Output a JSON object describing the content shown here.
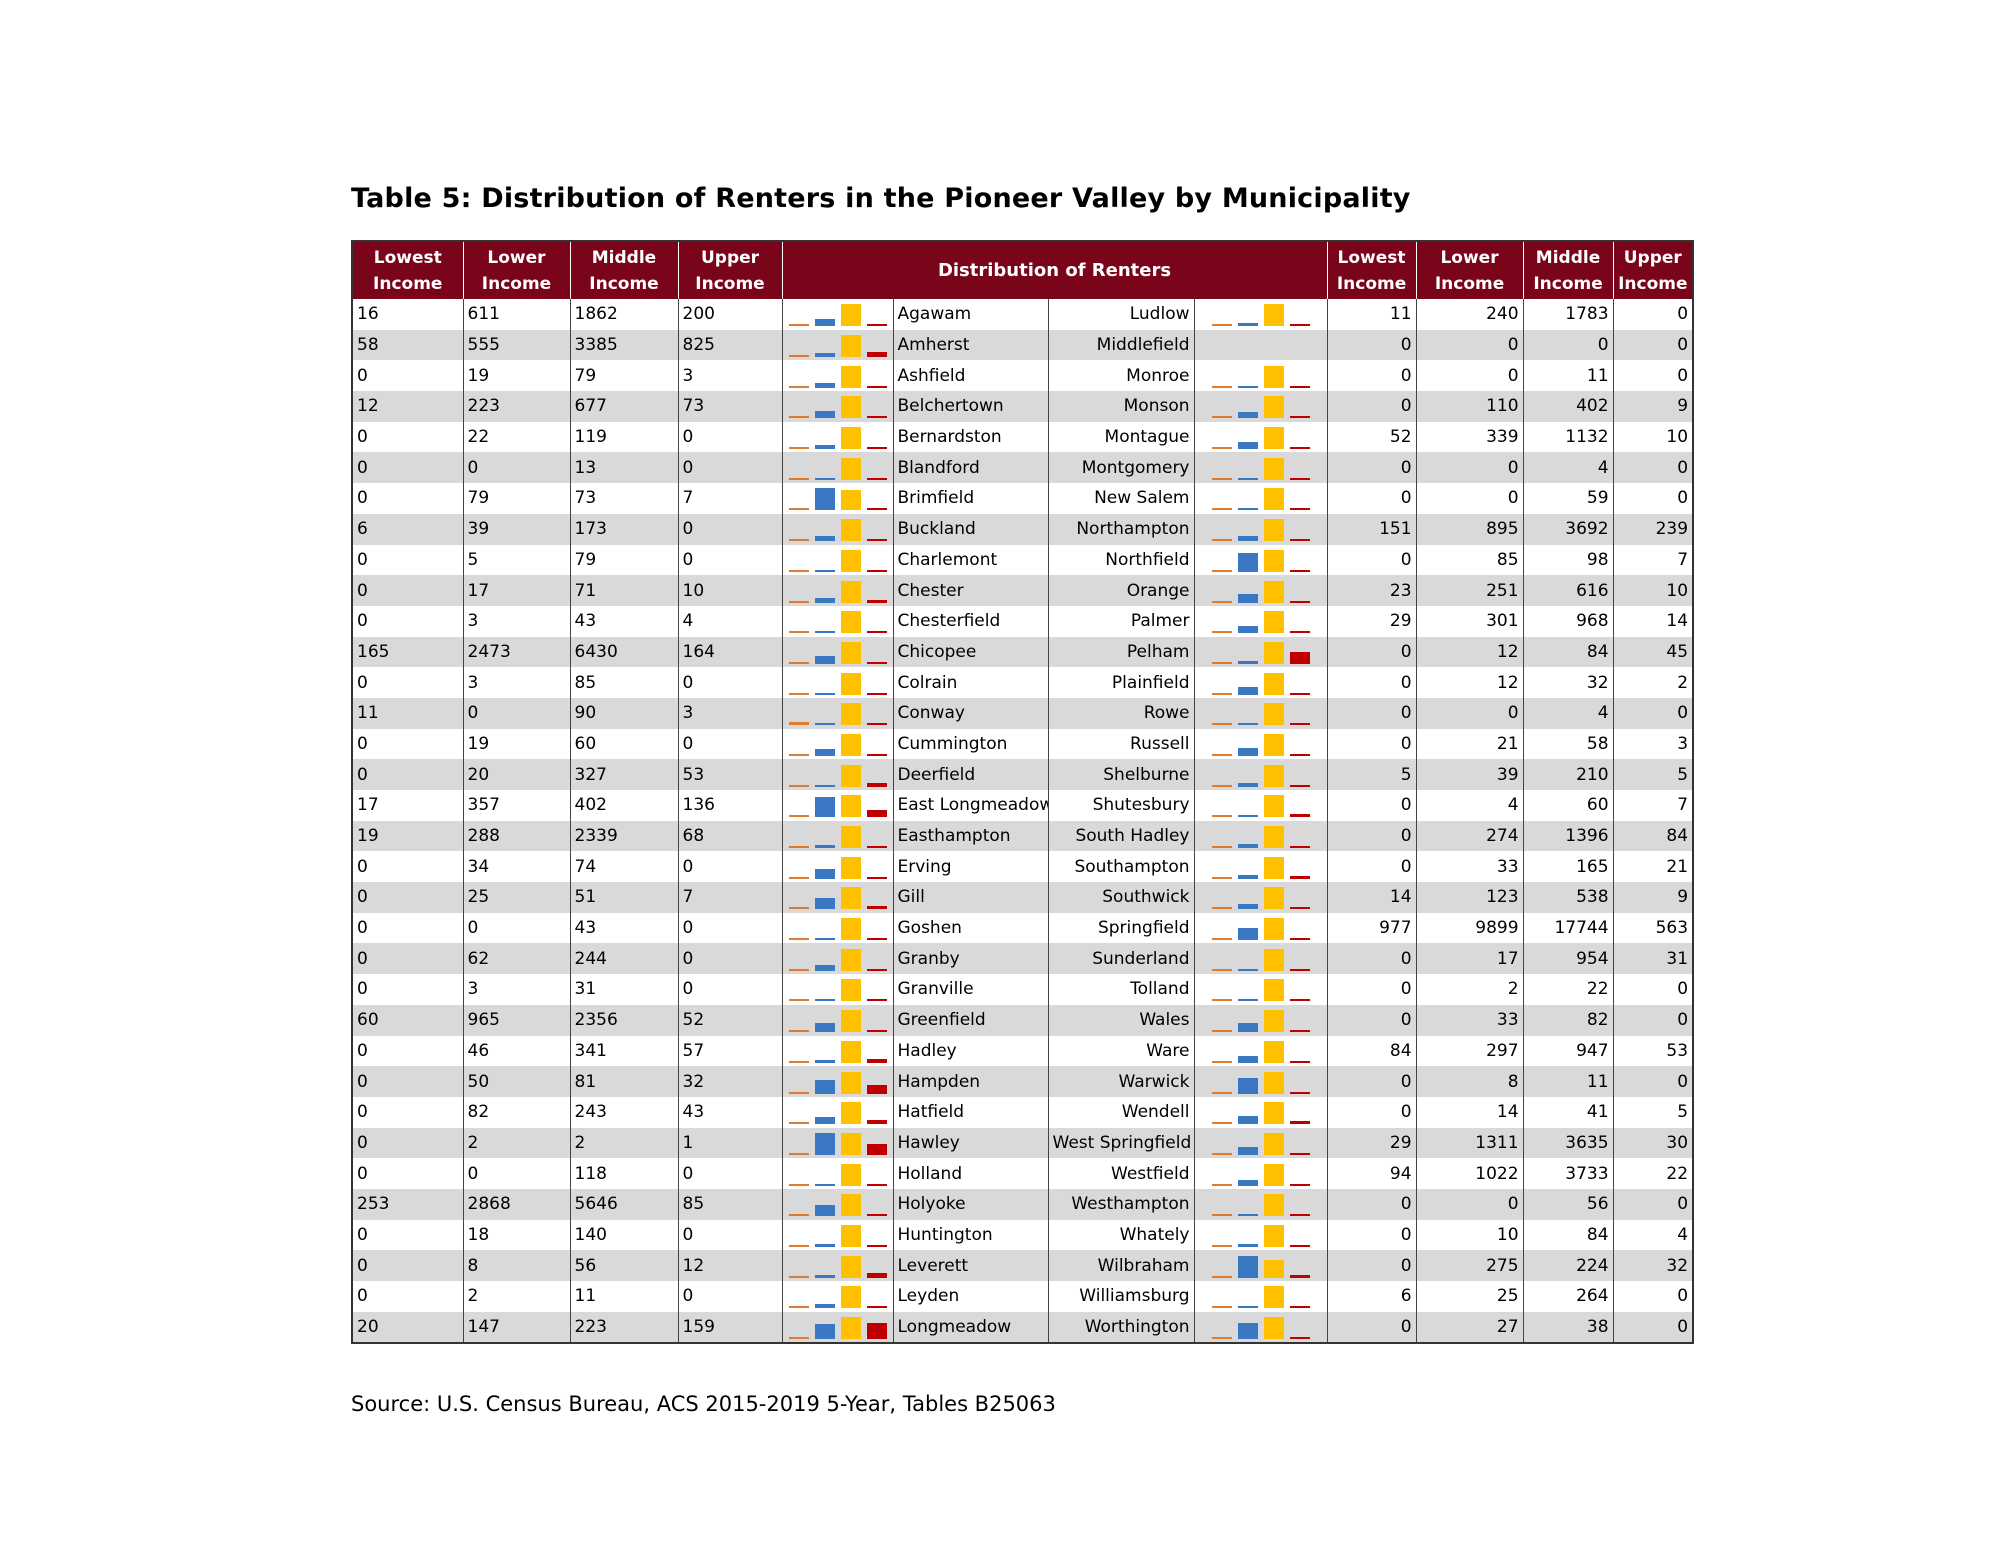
{
  "title": "Table 5: Distribution of Renters in the Pioneer Valley by Municipality",
  "source": "Source: U.S. Census Bureau, ACS 2015-2019 5-Year, Tables B25063",
  "header": {
    "left": [
      "Lowest Income",
      "Lower Income",
      "Middle Income",
      "Upper Income"
    ],
    "center": "Distribution of Renters",
    "right": [
      "Lowest Income",
      "Lower Income",
      "Middle Income",
      "Upper Income"
    ]
  },
  "colors": {
    "header": "#7a0419",
    "lowest": "#e07a2c",
    "lower": "#3b78c4",
    "middle": "#ffc000",
    "upper": "#c00000"
  },
  "rows": [
    {
      "lt": "Agawam",
      "lv": [
        16,
        611,
        1862,
        200
      ],
      "rt": "Ludlow",
      "rv": [
        11,
        240,
        1783,
        0
      ]
    },
    {
      "lt": "Amherst",
      "lv": [
        58,
        555,
        3385,
        825
      ],
      "rt": "Middlefield",
      "rv": [
        0,
        0,
        0,
        0
      ]
    },
    {
      "lt": "Ashfield",
      "lv": [
        0,
        19,
        79,
        3
      ],
      "rt": "Monroe",
      "rv": [
        0,
        0,
        11,
        0
      ]
    },
    {
      "lt": "Belchertown",
      "lv": [
        12,
        223,
        677,
        73
      ],
      "rt": "Monson",
      "rv": [
        0,
        110,
        402,
        9
      ]
    },
    {
      "lt": "Bernardston",
      "lv": [
        0,
        22,
        119,
        0
      ],
      "rt": "Montague",
      "rv": [
        52,
        339,
        1132,
        10
      ]
    },
    {
      "lt": "Blandford",
      "lv": [
        0,
        0,
        13,
        0
      ],
      "rt": "Montgomery",
      "rv": [
        0,
        0,
        4,
        0
      ]
    },
    {
      "lt": "Brimfield",
      "lv": [
        0,
        79,
        73,
        7
      ],
      "rt": "New Salem",
      "rv": [
        0,
        0,
        59,
        0
      ]
    },
    {
      "lt": "Buckland",
      "lv": [
        6,
        39,
        173,
        0
      ],
      "rt": "Northampton",
      "rv": [
        151,
        895,
        3692,
        239
      ]
    },
    {
      "lt": "Charlemont",
      "lv": [
        0,
        5,
        79,
        0
      ],
      "rt": "Northfield",
      "rv": [
        0,
        85,
        98,
        7
      ]
    },
    {
      "lt": "Chester",
      "lv": [
        0,
        17,
        71,
        10
      ],
      "rt": "Orange",
      "rv": [
        23,
        251,
        616,
        10
      ]
    },
    {
      "lt": "Chesterfield",
      "lv": [
        0,
        3,
        43,
        4
      ],
      "rt": "Palmer",
      "rv": [
        29,
        301,
        968,
        14
      ]
    },
    {
      "lt": "Chicopee",
      "lv": [
        165,
        2473,
        6430,
        164
      ],
      "rt": "Pelham",
      "rv": [
        0,
        12,
        84,
        45
      ]
    },
    {
      "lt": "Colrain",
      "lv": [
        0,
        3,
        85,
        0
      ],
      "rt": "Plainfield",
      "rv": [
        0,
        12,
        32,
        2
      ]
    },
    {
      "lt": "Conway",
      "lv": [
        11,
        0,
        90,
        3
      ],
      "rt": "Rowe",
      "rv": [
        0,
        0,
        4,
        0
      ]
    },
    {
      "lt": "Cummington",
      "lv": [
        0,
        19,
        60,
        0
      ],
      "rt": "Russell",
      "rv": [
        0,
        21,
        58,
        3
      ]
    },
    {
      "lt": "Deerfield",
      "lv": [
        0,
        20,
        327,
        53
      ],
      "rt": "Shelburne",
      "rv": [
        5,
        39,
        210,
        5
      ]
    },
    {
      "lt": "East Longmeadow",
      "lv": [
        17,
        357,
        402,
        136
      ],
      "rt": "Shutesbury",
      "rv": [
        0,
        4,
        60,
        7
      ]
    },
    {
      "lt": "Easthampton",
      "lv": [
        19,
        288,
        2339,
        68
      ],
      "rt": "South Hadley",
      "rv": [
        0,
        274,
        1396,
        84
      ]
    },
    {
      "lt": "Erving",
      "lv": [
        0,
        34,
        74,
        0
      ],
      "rt": "Southampton",
      "rv": [
        0,
        33,
        165,
        21
      ]
    },
    {
      "lt": "Gill",
      "lv": [
        0,
        25,
        51,
        7
      ],
      "rt": "Southwick",
      "rv": [
        14,
        123,
        538,
        9
      ]
    },
    {
      "lt": "Goshen",
      "lv": [
        0,
        0,
        43,
        0
      ],
      "rt": "Springfield",
      "rv": [
        977,
        9899,
        17744,
        563
      ]
    },
    {
      "lt": "Granby",
      "lv": [
        0,
        62,
        244,
        0
      ],
      "rt": "Sunderland",
      "rv": [
        0,
        17,
        954,
        31
      ]
    },
    {
      "lt": "Granville",
      "lv": [
        0,
        3,
        31,
        0
      ],
      "rt": "Tolland",
      "rv": [
        0,
        2,
        22,
        0
      ]
    },
    {
      "lt": "Greenfield",
      "lv": [
        60,
        965,
        2356,
        52
      ],
      "rt": "Wales",
      "rv": [
        0,
        33,
        82,
        0
      ]
    },
    {
      "lt": "Hadley",
      "lv": [
        0,
        46,
        341,
        57
      ],
      "rt": "Ware",
      "rv": [
        84,
        297,
        947,
        53
      ]
    },
    {
      "lt": "Hampden",
      "lv": [
        0,
        50,
        81,
        32
      ],
      "rt": "Warwick",
      "rv": [
        0,
        8,
        11,
        0
      ]
    },
    {
      "lt": "Hatfield",
      "lv": [
        0,
        82,
        243,
        43
      ],
      "rt": "Wendell",
      "rv": [
        0,
        14,
        41,
        5
      ]
    },
    {
      "lt": "Hawley",
      "lv": [
        0,
        2,
        2,
        1
      ],
      "rt": "West Springfield",
      "rv": [
        29,
        1311,
        3635,
        30
      ]
    },
    {
      "lt": "Holland",
      "lv": [
        0,
        0,
        118,
        0
      ],
      "rt": "Westfield",
      "rv": [
        94,
        1022,
        3733,
        22
      ]
    },
    {
      "lt": "Holyoke",
      "lv": [
        253,
        2868,
        5646,
        85
      ],
      "rt": "Westhampton",
      "rv": [
        0,
        0,
        56,
        0
      ]
    },
    {
      "lt": "Huntington",
      "lv": [
        0,
        18,
        140,
        0
      ],
      "rt": "Whately",
      "rv": [
        0,
        10,
        84,
        4
      ]
    },
    {
      "lt": "Leverett",
      "lv": [
        0,
        8,
        56,
        12
      ],
      "rt": "Wilbraham",
      "rv": [
        0,
        275,
        224,
        32
      ]
    },
    {
      "lt": "Leyden",
      "lv": [
        0,
        2,
        11,
        0
      ],
      "rt": "Williamsburg",
      "rv": [
        6,
        25,
        264,
        0
      ]
    },
    {
      "lt": "Longmeadow",
      "lv": [
        20,
        147,
        223,
        159
      ],
      "rt": "Worthington",
      "rv": [
        0,
        27,
        38,
        0
      ]
    }
  ]
}
